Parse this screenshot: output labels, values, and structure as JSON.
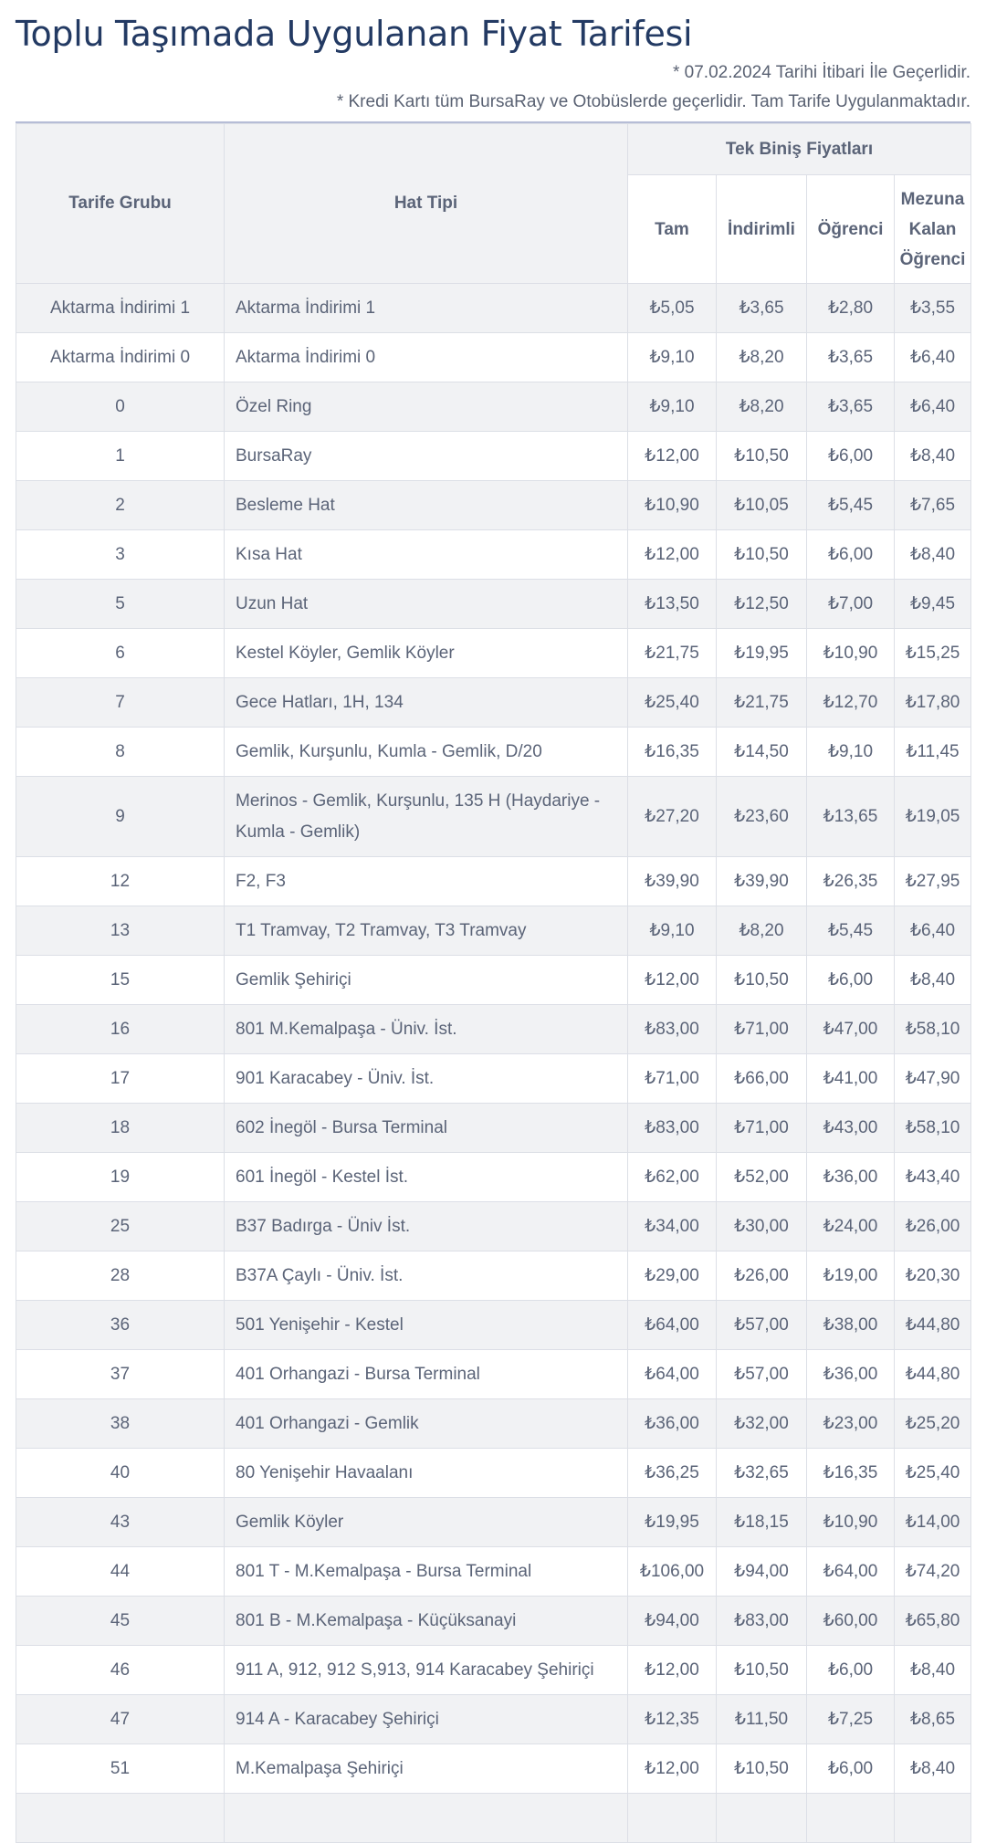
{
  "title": "Toplu Taşımada Uygulanan Fiyat Tarifesi",
  "notes": [
    "* 07.02.2024 Tarihi İtibari İle Geçerlidir.",
    "* Kredi Kartı tüm BursaRay ve Otobüslerde geçerlidir. Tam Tarife Uygulanmaktadır."
  ],
  "table": {
    "headers": {
      "group": "Tarife Grubu",
      "line_type": "Hat Tipi",
      "single_ride": "Tek Biniş Fiyatları",
      "full": "Tam",
      "discounted": "İndirimli",
      "student": "Öğrenci",
      "graduate_student": "Mezuna Kalan Öğrenci"
    },
    "rows": [
      {
        "group": "Aktarma İndirimi 1",
        "line": "Aktarma İndirimi 1",
        "full": "₺5,05",
        "discounted": "₺3,65",
        "student": "₺2,80",
        "graduate": "₺3,55"
      },
      {
        "group": "Aktarma İndirimi 0",
        "line": "Aktarma İndirimi 0",
        "full": "₺9,10",
        "discounted": "₺8,20",
        "student": "₺3,65",
        "graduate": "₺6,40"
      },
      {
        "group": "0",
        "line": "Özel Ring",
        "full": "₺9,10",
        "discounted": "₺8,20",
        "student": "₺3,65",
        "graduate": "₺6,40"
      },
      {
        "group": "1",
        "line": "BursaRay",
        "full": "₺12,00",
        "discounted": "₺10,50",
        "student": "₺6,00",
        "graduate": "₺8,40"
      },
      {
        "group": "2",
        "line": "Besleme Hat",
        "full": "₺10,90",
        "discounted": "₺10,05",
        "student": "₺5,45",
        "graduate": "₺7,65"
      },
      {
        "group": "3",
        "line": "Kısa Hat",
        "full": "₺12,00",
        "discounted": "₺10,50",
        "student": "₺6,00",
        "graduate": "₺8,40"
      },
      {
        "group": "5",
        "line": "Uzun Hat",
        "full": "₺13,50",
        "discounted": "₺12,50",
        "student": "₺7,00",
        "graduate": "₺9,45"
      },
      {
        "group": "6",
        "line": "Kestel Köyler, Gemlik Köyler",
        "full": "₺21,75",
        "discounted": "₺19,95",
        "student": "₺10,90",
        "graduate": "₺15,25"
      },
      {
        "group": "7",
        "line": "Gece Hatları, 1H, 134",
        "full": "₺25,40",
        "discounted": "₺21,75",
        "student": "₺12,70",
        "graduate": "₺17,80"
      },
      {
        "group": "8",
        "line": "Gemlik, Kurşunlu, Kumla - Gemlik, D/20",
        "full": "₺16,35",
        "discounted": "₺14,50",
        "student": "₺9,10",
        "graduate": "₺11,45"
      },
      {
        "group": "9",
        "line": "Merinos - Gemlik, Kurşunlu, 135 H (Haydariye - Kumla - Gemlik)",
        "full": "₺27,20",
        "discounted": "₺23,60",
        "student": "₺13,65",
        "graduate": "₺19,05"
      },
      {
        "group": "12",
        "line": "F2, F3",
        "full": "₺39,90",
        "discounted": "₺39,90",
        "student": "₺26,35",
        "graduate": "₺27,95"
      },
      {
        "group": "13",
        "line": "T1 Tramvay, T2 Tramvay, T3 Tramvay",
        "full": "₺9,10",
        "discounted": "₺8,20",
        "student": "₺5,45",
        "graduate": "₺6,40"
      },
      {
        "group": "15",
        "line": "Gemlik Şehiriçi",
        "full": "₺12,00",
        "discounted": "₺10,50",
        "student": "₺6,00",
        "graduate": "₺8,40"
      },
      {
        "group": "16",
        "line": "801 M.Kemalpaşa - Üniv. İst.",
        "full": "₺83,00",
        "discounted": "₺71,00",
        "student": "₺47,00",
        "graduate": "₺58,10"
      },
      {
        "group": "17",
        "line": "901 Karacabey - Üniv. İst.",
        "full": "₺71,00",
        "discounted": "₺66,00",
        "student": "₺41,00",
        "graduate": "₺47,90"
      },
      {
        "group": "18",
        "line": "602 İnegöl - Bursa Terminal",
        "full": "₺83,00",
        "discounted": "₺71,00",
        "student": "₺43,00",
        "graduate": "₺58,10"
      },
      {
        "group": "19",
        "line": "601 İnegöl - Kestel İst.",
        "full": "₺62,00",
        "discounted": "₺52,00",
        "student": "₺36,00",
        "graduate": "₺43,40"
      },
      {
        "group": "25",
        "line": "B37 Badırga - Üniv İst.",
        "full": "₺34,00",
        "discounted": "₺30,00",
        "student": "₺24,00",
        "graduate": "₺26,00"
      },
      {
        "group": "28",
        "line": "B37A Çaylı - Üniv. İst.",
        "full": "₺29,00",
        "discounted": "₺26,00",
        "student": "₺19,00",
        "graduate": "₺20,30"
      },
      {
        "group": "36",
        "line": "501 Yenişehir - Kestel",
        "full": "₺64,00",
        "discounted": "₺57,00",
        "student": "₺38,00",
        "graduate": "₺44,80"
      },
      {
        "group": "37",
        "line": "401 Orhangazi - Bursa Terminal",
        "full": "₺64,00",
        "discounted": "₺57,00",
        "student": "₺36,00",
        "graduate": "₺44,80"
      },
      {
        "group": "38",
        "line": "401 Orhangazi - Gemlik",
        "full": "₺36,00",
        "discounted": "₺32,00",
        "student": "₺23,00",
        "graduate": "₺25,20"
      },
      {
        "group": "40",
        "line": "80 Yenişehir Havaalanı",
        "full": "₺36,25",
        "discounted": "₺32,65",
        "student": "₺16,35",
        "graduate": "₺25,40"
      },
      {
        "group": "43",
        "line": "Gemlik Köyler",
        "full": "₺19,95",
        "discounted": "₺18,15",
        "student": "₺10,90",
        "graduate": "₺14,00"
      },
      {
        "group": "44",
        "line": "801 T - M.Kemalpaşa - Bursa Terminal",
        "full": "₺106,00",
        "discounted": "₺94,00",
        "student": "₺64,00",
        "graduate": "₺74,20"
      },
      {
        "group": "45",
        "line": "801 B - M.Kemalpaşa - Küçüksanayi",
        "full": "₺94,00",
        "discounted": "₺83,00",
        "student": "₺60,00",
        "graduate": "₺65,80"
      },
      {
        "group": "46",
        "line": "911 A, 912, 912 S,913, 914 Karacabey Şehiriçi",
        "full": "₺12,00",
        "discounted": "₺10,50",
        "student": "₺6,00",
        "graduate": "₺8,40"
      },
      {
        "group": "47",
        "line": "914 A - Karacabey Şehiriçi",
        "full": "₺12,35",
        "discounted": "₺11,50",
        "student": "₺7,25",
        "graduate": "₺8,65"
      },
      {
        "group": "51",
        "line": "M.Kemalpaşa Şehiriçi",
        "full": "₺12,00",
        "discounted": "₺10,50",
        "student": "₺6,00",
        "graduate": "₺8,40"
      },
      {
        "group": "",
        "line": "",
        "full": "",
        "discounted": "",
        "student": "",
        "graduate": ""
      }
    ]
  }
}
